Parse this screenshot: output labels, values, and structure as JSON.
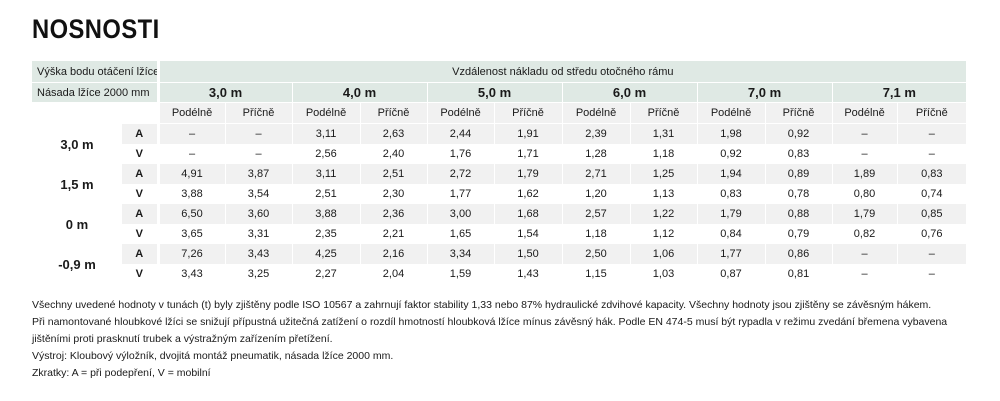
{
  "title": "NOSNOSTI",
  "header": {
    "pivot_label": "Výška bodu otáčení lžíce",
    "distance_label": "Vzdálenost nákladu od středu otočného rámu",
    "arm_label": "Násada lžíce 2000 mm",
    "distances": [
      "3,0 m",
      "4,0 m",
      "5,0 m",
      "6,0 m",
      "7,0 m",
      "7,1 m"
    ],
    "sub_long": "Podélně",
    "sub_cross": "Příčně"
  },
  "rows": [
    {
      "height": "3,0 m",
      "modes": [
        {
          "mode": "A",
          "values": [
            "–",
            "–",
            "3,11",
            "2,63",
            "2,44",
            "1,91",
            "2,39",
            "1,31",
            "1,98",
            "0,92",
            "–",
            "–"
          ]
        },
        {
          "mode": "V",
          "values": [
            "–",
            "–",
            "2,56",
            "2,40",
            "1,76",
            "1,71",
            "1,28",
            "1,18",
            "0,92",
            "0,83",
            "–",
            "–"
          ]
        }
      ]
    },
    {
      "height": "1,5 m",
      "modes": [
        {
          "mode": "A",
          "values": [
            "4,91",
            "3,87",
            "3,11",
            "2,51",
            "2,72",
            "1,79",
            "2,71",
            "1,25",
            "1,94",
            "0,89",
            "1,89",
            "0,83"
          ]
        },
        {
          "mode": "V",
          "values": [
            "3,88",
            "3,54",
            "2,51",
            "2,30",
            "1,77",
            "1,62",
            "1,20",
            "1,13",
            "0,83",
            "0,78",
            "0,80",
            "0,74"
          ]
        }
      ]
    },
    {
      "height": "0 m",
      "modes": [
        {
          "mode": "A",
          "values": [
            "6,50",
            "3,60",
            "3,88",
            "2,36",
            "3,00",
            "1,68",
            "2,57",
            "1,22",
            "1,79",
            "0,88",
            "1,79",
            "0,85"
          ]
        },
        {
          "mode": "V",
          "values": [
            "3,65",
            "3,31",
            "2,35",
            "2,21",
            "1,65",
            "1,54",
            "1,18",
            "1,12",
            "0,84",
            "0,79",
            "0,82",
            "0,76"
          ]
        }
      ]
    },
    {
      "height": "-0,9 m",
      "modes": [
        {
          "mode": "A",
          "values": [
            "7,26",
            "3,43",
            "4,25",
            "2,16",
            "3,34",
            "1,50",
            "2,50",
            "1,06",
            "1,77",
            "0,86",
            "–",
            "–"
          ]
        },
        {
          "mode": "V",
          "values": [
            "3,43",
            "3,25",
            "2,27",
            "2,04",
            "1,59",
            "1,43",
            "1,15",
            "1,03",
            "0,87",
            "0,81",
            "–",
            "–"
          ]
        }
      ]
    }
  ],
  "notes": [
    "Všechny uvedené hodnoty v tunách (t) byly zjištěny podle ISO 10567 a zahrnují faktor stability 1,33 nebo 87% hydraulické zdvihové kapacity. Všechny hodnoty jsou zjištěny se závěsným hákem.",
    "Při namontované hloubkové lžíci se snižují přípustná užitečná zatížení o rozdíl hmotností hloubková lžíce mínus závěsný hák. Podle EN 474-5 musí být rypadla v režimu zvedání břemena vybavena jištěními proti prasknutí trubek a výstražným zařízením přetížení.",
    "Výstroj: Kloubový výložník, dvojitá montáž pneumatik, násada lžíce 2000 mm.",
    "Zkratky: A = při podepření, V = mobilní"
  ]
}
